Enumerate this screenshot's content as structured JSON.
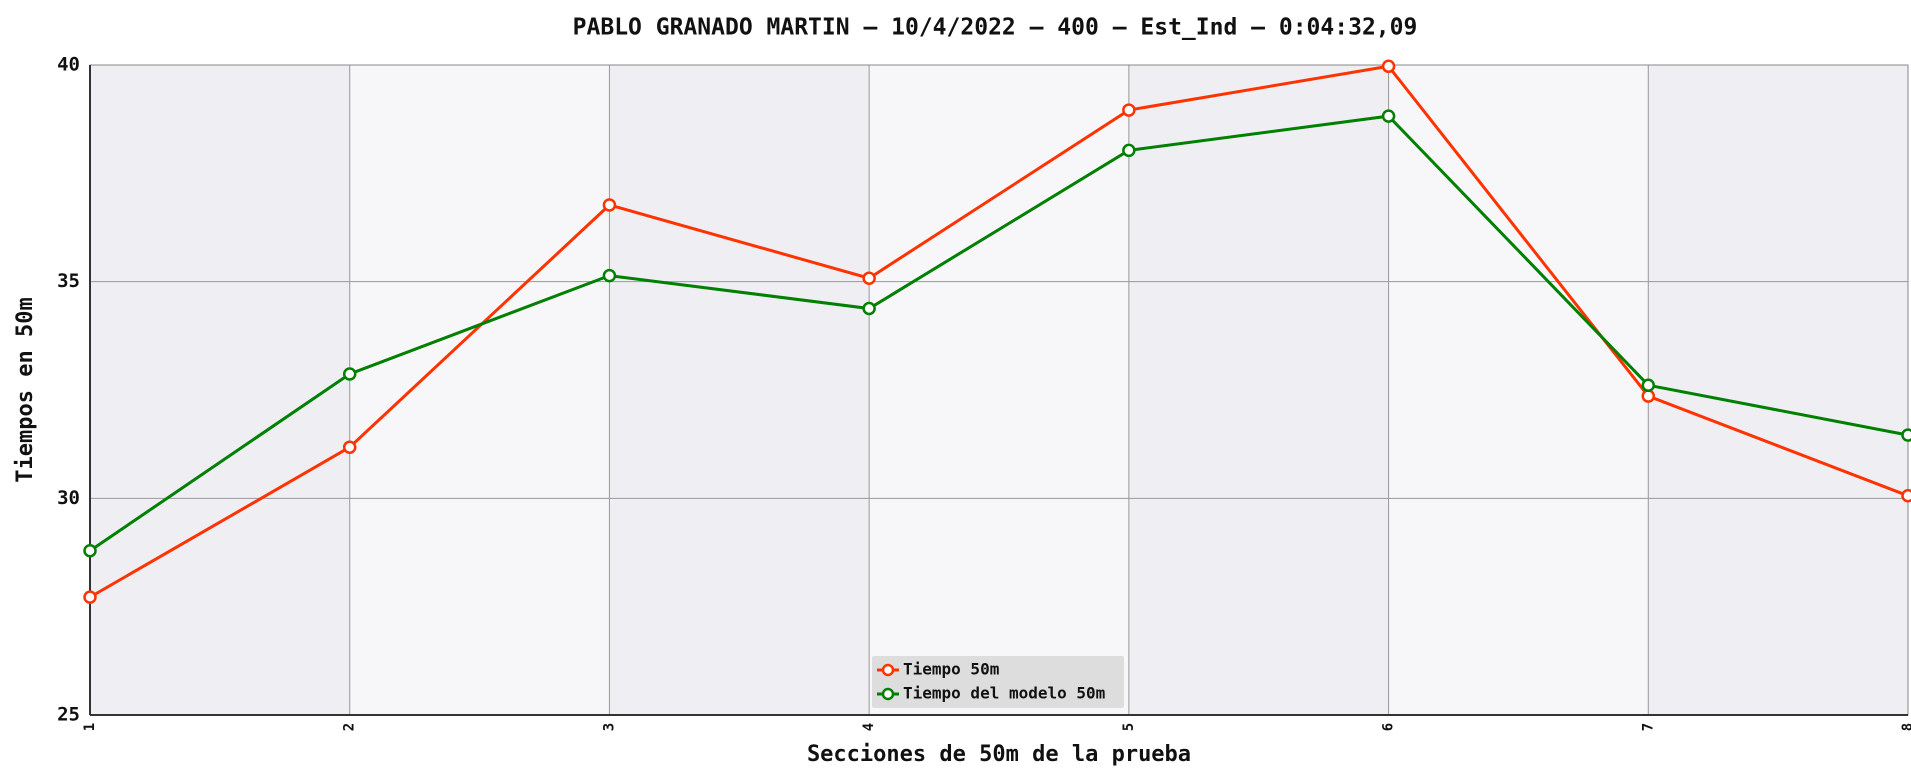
{
  "chart_data": {
    "type": "line",
    "title": "PABLO GRANADO MARTIN – 10/4/2022 – 400 – Est_Ind – 0:04:32,09",
    "x_label": "Secciones de 50m de la prueba",
    "y_label": "Tiempos en 50m",
    "x": [
      1,
      2,
      3,
      4,
      5,
      6,
      7,
      8
    ],
    "series": [
      {
        "name": "Tiempo 50m",
        "color": "#ff3300",
        "values": [
          27.72,
          31.18,
          36.77,
          35.08,
          38.96,
          39.97,
          32.36,
          30.06
        ]
      },
      {
        "name": "Tiempo del modelo 50m",
        "color": "#008000",
        "values": [
          28.79,
          32.87,
          35.14,
          34.38,
          38.03,
          38.82,
          32.61,
          31.46
        ]
      }
    ],
    "xlim": [
      1,
      8
    ],
    "xticks": [
      1,
      2,
      3,
      4,
      5,
      6,
      7,
      8
    ],
    "ylim": [
      25,
      40
    ],
    "yticks": [
      25,
      30,
      35,
      40
    ],
    "grid": true,
    "legend": "bottom"
  }
}
